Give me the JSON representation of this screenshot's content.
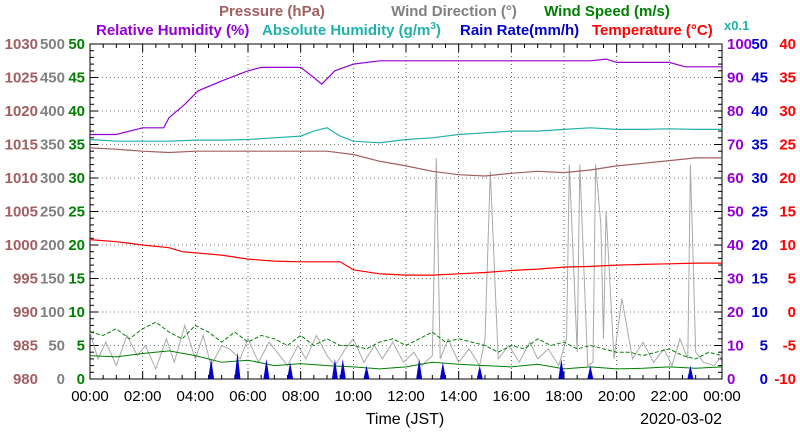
{
  "chart_data": {
    "type": "line",
    "date": "2020-03-02",
    "xlabel": "Time (JST)",
    "x_ticks": [
      "00:00",
      "02:00",
      "04:00",
      "06:00",
      "08:00",
      "10:00",
      "12:00",
      "14:00",
      "16:00",
      "18:00",
      "20:00",
      "22:00",
      "00:00"
    ],
    "xlim": [
      0,
      24
    ],
    "legend": {
      "row1": [
        {
          "text": "Pressure (hPa)",
          "color": "#a0605f"
        },
        {
          "text": "Wind Direction (°)",
          "color": "#808080"
        },
        {
          "text": "Wind Speed (m/s)",
          "color": "#008000"
        }
      ],
      "row2": [
        {
          "text": "Relative Humidity (%)",
          "color": "#9400d3"
        },
        {
          "text": "Absolute Humidity (g/m",
          "sup": "3",
          "tail": ")",
          "color": "#20b2aa"
        },
        {
          "text": "Rain Rate(mm/h)",
          "color": "#0000cd"
        },
        {
          "text": "Temperature (°C)",
          "color": "#ff0000"
        }
      ],
      "x01": {
        "text": "x0.1",
        "color": "#20b2aa"
      }
    },
    "axes": {
      "pressure": {
        "color": "#a0605f",
        "ticks": [
          "980",
          "985",
          "990",
          "995",
          "1000",
          "1005",
          "1010",
          "1015",
          "1020",
          "1025",
          "1030"
        ],
        "ylim": [
          980,
          1030
        ]
      },
      "wind_direction": {
        "color": "#808080",
        "ticks": [
          "0",
          "50",
          "100",
          "150",
          "200",
          "250",
          "300",
          "350",
          "400",
          "450",
          "500"
        ],
        "ylim": [
          0,
          500
        ]
      },
      "wind_speed": {
        "color": "#008000",
        "ticks": [
          "0",
          "5",
          "10",
          "15",
          "20",
          "25",
          "30",
          "35",
          "40",
          "45",
          "50"
        ],
        "ylim": [
          0,
          50
        ]
      },
      "humidity": {
        "color": "#9400d3",
        "ticks": [
          "0",
          "10",
          "20",
          "30",
          "40",
          "50",
          "60",
          "70",
          "80",
          "90",
          "100"
        ],
        "ylim": [
          0,
          100
        ]
      },
      "rain_rate": {
        "color": "#0000cd",
        "ticks": [
          "0",
          "5",
          "10",
          "15",
          "20",
          "25",
          "30",
          "35",
          "40",
          "45",
          "50"
        ],
        "ylim": [
          0,
          50
        ]
      },
      "temperature": {
        "color": "#ff0000",
        "ticks": [
          "-10",
          "-5",
          "0",
          "5",
          "10",
          "15",
          "20",
          "25",
          "30",
          "35",
          "40"
        ],
        "ylim": [
          -10,
          40
        ]
      }
    },
    "series": [
      {
        "key": "pressure",
        "color": "#a0605f",
        "x": [
          0,
          1,
          2,
          3,
          4,
          5,
          6,
          7,
          8,
          9,
          10,
          11,
          12,
          13,
          14,
          15,
          16,
          17,
          18,
          19,
          20,
          21,
          22,
          23,
          24
        ],
        "y": [
          1014.5,
          1014.3,
          1014,
          1013.8,
          1014,
          1014,
          1014,
          1014,
          1014,
          1014,
          1013.5,
          1012.5,
          1011.8,
          1011,
          1010.5,
          1010.3,
          1010.7,
          1011,
          1010.8,
          1011.2,
          1011.8,
          1012.2,
          1012.6,
          1013,
          1013
        ]
      },
      {
        "key": "relative_humidity",
        "color": "#9400d3",
        "x": [
          0,
          1,
          2,
          2.8,
          3,
          3.6,
          4.1,
          5,
          6,
          6.5,
          7,
          8,
          8.5,
          8.8,
          9.3,
          10,
          11,
          12,
          13,
          14,
          15,
          16,
          17,
          18,
          19,
          19.6,
          20,
          21,
          22,
          22.6,
          23,
          24
        ],
        "y": [
          73,
          73,
          75,
          75,
          78,
          82,
          86,
          89,
          92,
          93,
          93,
          93,
          90,
          88,
          92,
          94,
          95,
          95,
          95,
          95,
          95,
          95,
          95,
          95,
          95,
          95.5,
          94.5,
          94.5,
          94.5,
          93.2,
          93.2,
          93.2
        ]
      },
      {
        "key": "absolute_humidity_x0.1",
        "color": "#20b2aa",
        "x": [
          0,
          1,
          2,
          3,
          4,
          5,
          6,
          7,
          8,
          8.5,
          9,
          9.5,
          10,
          11,
          12,
          13,
          14,
          15,
          16,
          17,
          18,
          19,
          20,
          21,
          22,
          23,
          24
        ],
        "y": [
          71.5,
          71,
          71,
          71,
          71.3,
          71.3,
          71.5,
          72,
          72.5,
          74,
          75,
          72.5,
          71,
          70.5,
          71.5,
          72,
          73,
          73.5,
          74,
          74,
          74.5,
          75,
          74.5,
          74.5,
          74.7,
          74.5,
          74.5
        ]
      },
      {
        "key": "temperature",
        "color": "#ff0000",
        "x": [
          0,
          1,
          2,
          3,
          3.5,
          5,
          6,
          7,
          8,
          9,
          9.5,
          10,
          11,
          12,
          13,
          14,
          15,
          16,
          17,
          18,
          19,
          20,
          21,
          22,
          23,
          24
        ],
        "y": [
          10.8,
          10.5,
          10,
          9.6,
          9,
          8.5,
          7.9,
          7.6,
          7.5,
          7.5,
          7.5,
          6.3,
          5.7,
          5.5,
          5.5,
          5.7,
          5.9,
          6.2,
          6.4,
          6.7,
          6.8,
          7,
          7.1,
          7.2,
          7.3,
          7.3
        ]
      },
      {
        "key": "wind_speed_mean",
        "color": "#008000",
        "style": "solid",
        "x": [
          0,
          1,
          2,
          3,
          4,
          5,
          6,
          7,
          8,
          9,
          10,
          11,
          12,
          13,
          14,
          15,
          16,
          17,
          18,
          19,
          20,
          21,
          22,
          23,
          24
        ],
        "y": [
          3.5,
          3.3,
          3.8,
          4.2,
          3.5,
          2.5,
          2.8,
          2,
          2.3,
          2,
          1.8,
          1.5,
          1.8,
          2.5,
          2.2,
          2,
          1.8,
          2.2,
          1.5,
          1.8,
          1.5,
          1.6,
          1.8,
          1.6,
          1.8
        ]
      },
      {
        "key": "wind_speed_gust",
        "color": "#008000",
        "style": "dashed",
        "x": [
          0,
          0.5,
          1,
          1.5,
          2,
          2.5,
          3,
          3.5,
          4,
          4.5,
          5,
          5.5,
          6,
          6.5,
          7,
          7.5,
          8,
          8.5,
          9,
          9.5,
          10,
          10.5,
          11,
          11.5,
          12,
          12.5,
          13,
          13.5,
          14,
          14.5,
          15,
          15.5,
          16,
          16.5,
          17,
          17.5,
          18,
          18.5,
          19,
          19.5,
          20,
          20.5,
          21,
          21.5,
          22,
          22.5,
          23,
          23.5,
          24
        ],
        "y": [
          7,
          6.5,
          7.5,
          6,
          7.5,
          8.5,
          7,
          6,
          8,
          7,
          5.5,
          7,
          5.5,
          6.5,
          6,
          5,
          6.5,
          5,
          6,
          5,
          5,
          4.5,
          5.5,
          6,
          5,
          6,
          7,
          5.5,
          6,
          5.5,
          5,
          4,
          5,
          4.5,
          6,
          5,
          5.5,
          4.5,
          5,
          4.5,
          4,
          4,
          3.5,
          4,
          4.5,
          3.5,
          3,
          4,
          3.5
        ]
      }
    ],
    "wind_direction": {
      "color": "#a9a9a9",
      "x": [
        0,
        0.3,
        0.6,
        1,
        1.4,
        1.8,
        2.1,
        2.5,
        2.9,
        3.2,
        3.6,
        4,
        4.3,
        4.6,
        5,
        5.3,
        5.7,
        6,
        6.4,
        6.8,
        7.1,
        7.5,
        7.9,
        8.2,
        8.6,
        9,
        9.3,
        9.7,
        10,
        10.4,
        10.8,
        11.1,
        11.5,
        11.9,
        12.3,
        12.6,
        13,
        13.15,
        13.3,
        13.6,
        14,
        14.4,
        14.8,
        15,
        15.2,
        15.5,
        15.9,
        16.3,
        16.7,
        17,
        17.4,
        17.8,
        18.1,
        18.2,
        18.5,
        18.6,
        18.9,
        19.1,
        19.2,
        19.4,
        19.5,
        19.6,
        19.9,
        20.2,
        20.6,
        21,
        21.4,
        21.8,
        22.1,
        22.4,
        22.7,
        22.8,
        23,
        23.3,
        23.7,
        24
      ],
      "y": [
        70,
        30,
        55,
        20,
        65,
        35,
        50,
        15,
        60,
        25,
        80,
        30,
        65,
        20,
        50,
        45,
        30,
        60,
        25,
        55,
        40,
        20,
        50,
        30,
        65,
        35,
        20,
        45,
        60,
        25,
        50,
        30,
        55,
        25,
        40,
        20,
        35,
        330,
        30,
        60,
        25,
        45,
        20,
        60,
        310,
        30,
        50,
        25,
        55,
        30,
        45,
        20,
        60,
        320,
        40,
        320,
        20,
        25,
        320,
        230,
        60,
        250,
        30,
        120,
        30,
        55,
        25,
        45,
        20,
        60,
        30,
        320,
        40,
        25,
        20,
        35
      ]
    },
    "rain_rate": {
      "color": "#0000cd",
      "events": [
        {
          "x": 4.6,
          "y": 3
        },
        {
          "x": 5.6,
          "y": 4
        },
        {
          "x": 6.7,
          "y": 3
        },
        {
          "x": 7.6,
          "y": 2.5
        },
        {
          "x": 9.3,
          "y": 3
        },
        {
          "x": 9.6,
          "y": 3
        },
        {
          "x": 10.5,
          "y": 2
        },
        {
          "x": 12.5,
          "y": 3
        },
        {
          "x": 13.4,
          "y": 2.5
        },
        {
          "x": 14.8,
          "y": 2
        },
        {
          "x": 17.9,
          "y": 3
        },
        {
          "x": 19,
          "y": 2
        },
        {
          "x": 22.8,
          "y": 2
        }
      ]
    }
  }
}
